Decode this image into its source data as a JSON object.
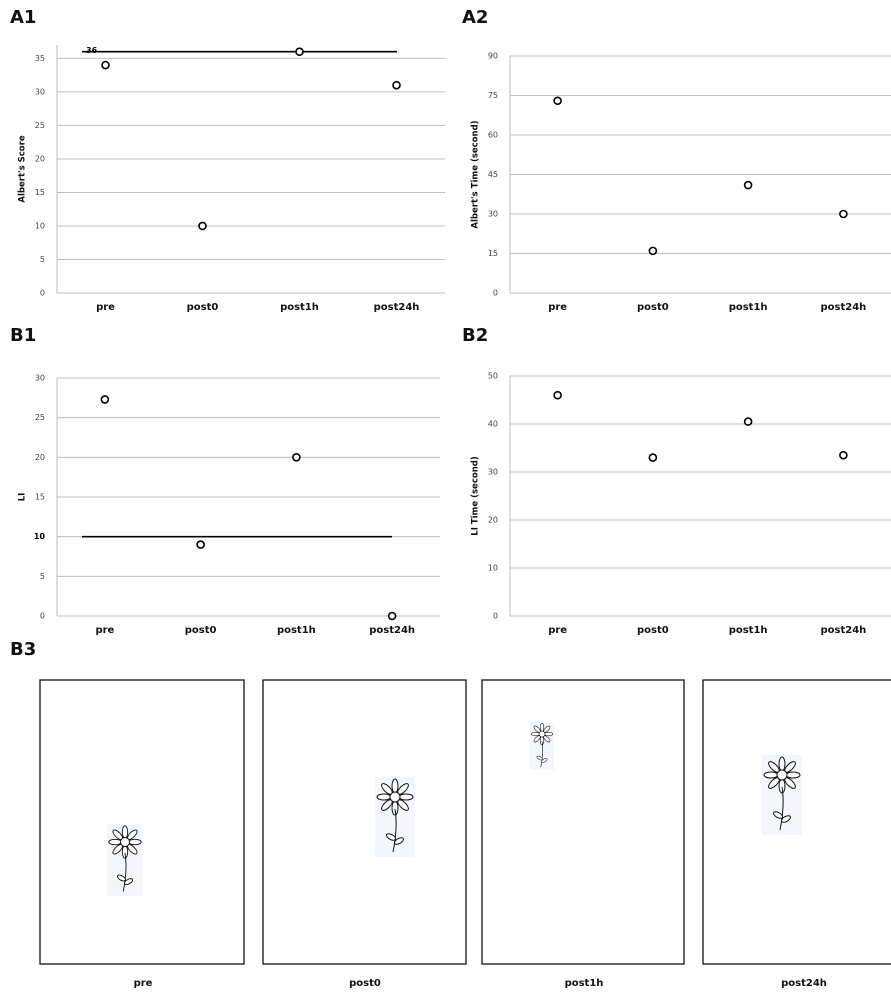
{
  "chart_data": [
    {
      "type": "line",
      "panel": "A1",
      "y_label": "Albert's Score",
      "categories": [
        "pre",
        "post0",
        "post1h",
        "post24h"
      ],
      "series": [
        {
          "color": "#000000",
          "values": [
            34,
            10,
            36,
            31
          ]
        }
      ],
      "ylim": [
        0,
        37
      ],
      "yticks": [
        0,
        5,
        10,
        15,
        20,
        25,
        30,
        35
      ],
      "grid": true,
      "reference_line": {
        "value": 36,
        "label": "36"
      }
    },
    {
      "type": "line",
      "panel": "A2",
      "y_label": "Albert's  Time (second)",
      "categories": [
        "pre",
        "post0",
        "post1h",
        "post24h"
      ],
      "series": [
        {
          "color": "#000000",
          "values": [
            73,
            16,
            41,
            30
          ]
        }
      ],
      "ylim": [
        0,
        90
      ],
      "yticks": [
        0,
        15,
        30,
        45,
        60,
        75,
        90
      ],
      "grid": true
    },
    {
      "type": "line",
      "panel": "B1",
      "y_label": "LI",
      "categories": [
        "pre",
        "post0",
        "post1h",
        "post24h"
      ],
      "series": [
        {
          "color": "#000000",
          "values": [
            27.3,
            9,
            20,
            0
          ]
        }
      ],
      "ylim": [
        0,
        30
      ],
      "yticks": [
        0,
        5,
        10,
        15,
        20,
        25,
        30
      ],
      "grid": true,
      "reference_line": {
        "value": 10
      }
    },
    {
      "type": "line",
      "panel": "B2",
      "y_label": "LI Time (second)",
      "categories": [
        "pre",
        "post0",
        "post1h",
        "post24h"
      ],
      "series": [
        {
          "color": "#000000",
          "values": [
            46,
            33,
            40.5,
            33.5
          ]
        }
      ],
      "ylim": [
        0,
        50
      ],
      "yticks": [
        0,
        10,
        20,
        30,
        40,
        50
      ],
      "grid": true
    }
  ],
  "drawings": {
    "panel": "B3",
    "captions": [
      "pre",
      "post0",
      "post1h",
      "post24h"
    ]
  }
}
